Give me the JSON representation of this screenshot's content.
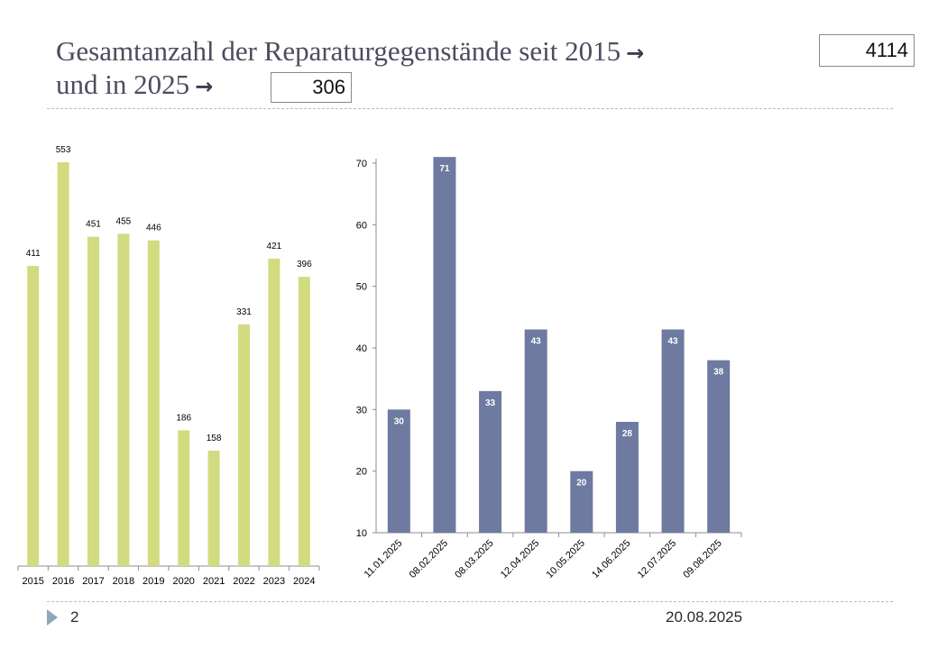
{
  "slide": {
    "title_line1": "Gesamtanzahl der Reparaturgegenstände seit 2015",
    "title_line2": "und in 2025",
    "arrow": "→",
    "total_since_2015": "4114",
    "total_2025": "306",
    "page_number": "2",
    "date": "20.08.2025",
    "colors": {
      "yearly_bar": "#d3db80",
      "session_bar": "#6e7aa0",
      "title": "#4b4c5e"
    }
  },
  "chart_data": [
    {
      "type": "bar",
      "categories": [
        "2015",
        "2016",
        "2017",
        "2018",
        "2019",
        "2020",
        "2021",
        "2022",
        "2023",
        "2024"
      ],
      "values": [
        411,
        553,
        451,
        455,
        446,
        186,
        158,
        331,
        421,
        396
      ],
      "data_labels": [
        "411",
        "553",
        "451",
        "455",
        "446",
        "186",
        "158",
        "331",
        "421",
        "396"
      ],
      "title": "",
      "xlabel": "",
      "ylabel": "",
      "ylim": [
        0,
        560
      ],
      "grid": false
    },
    {
      "type": "bar",
      "categories": [
        "11.01.2025",
        "08.02.2025",
        "08.03.2025",
        "12.04.2025",
        "10.05.2025",
        "14.06.2025",
        "12.07.2025",
        "09.08.2025"
      ],
      "values": [
        30,
        71,
        33,
        43,
        20,
        28,
        43,
        38
      ],
      "data_labels": [
        "30",
        "71",
        "33",
        "43",
        "20",
        "28",
        "43",
        "38"
      ],
      "yticks": [
        "10",
        "20",
        "30",
        "40",
        "50",
        "60",
        "70"
      ],
      "title": "",
      "xlabel": "",
      "ylabel": "",
      "ylim": [
        10,
        71
      ],
      "grid": false
    }
  ]
}
